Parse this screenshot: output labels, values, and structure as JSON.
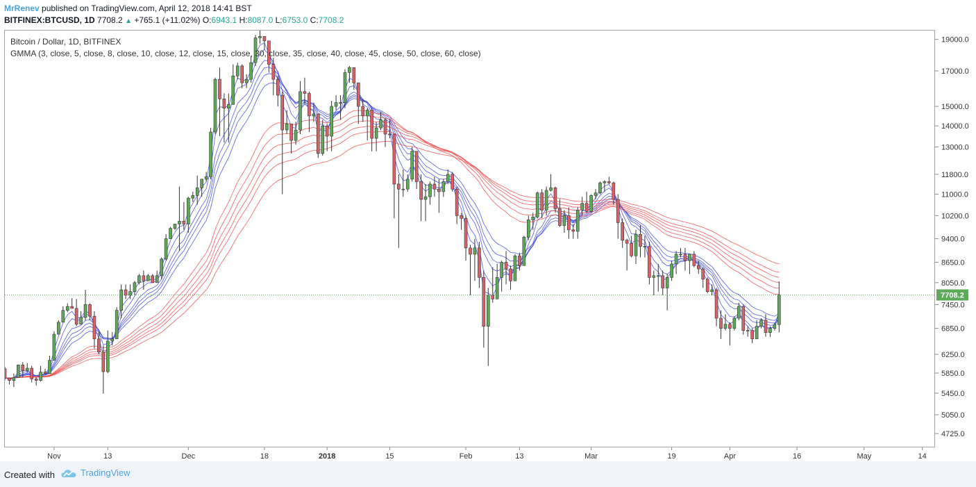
{
  "header": {
    "author": "MrRenev",
    "published": "published on TradingView.com, April 12, 2018 14:41 BST",
    "symbol": "BITFINEX:BTCUSD, 1D",
    "last": "7708.2",
    "change": "+765.1 (+11.02%)",
    "o_label": "O:",
    "o": "6943.1",
    "h_label": "H:",
    "h": "8087.0",
    "l_label": "L:",
    "l": "6753.0",
    "c_label": "C:",
    "c": "7708.2"
  },
  "legend": {
    "title": "Bitcoin / Dollar, 1D, BITFINEX",
    "indicator": "GMMA (3, close, 5, close, 8, close, 10, close, 12, close, 15, close, 30, close, 35, close, 40, close, 45, close, 50, close, 60, close)"
  },
  "footer": {
    "created": "Created with",
    "brand": "TradingView"
  },
  "colors": {
    "up": "#5ea95a",
    "down": "#d9626a",
    "wick": "#333333",
    "short_ma": "#3f49e0",
    "long_ma": "#ef4a4a",
    "last_line": "#63a95e",
    "last_badge": "#5ea95a"
  },
  "chart_data": {
    "type": "candlestick",
    "x_tick_labels": [
      "Nov",
      "13",
      "Dec",
      "18",
      "2018",
      "15",
      "Feb",
      "13",
      "Mar",
      "19",
      "Apr",
      "16",
      "May",
      "14"
    ],
    "y_tick_labels": [
      "19000.0",
      "17000.0",
      "15000.0",
      "14000.0",
      "13000.0",
      "11800.0",
      "11000.0",
      "10200.0",
      "9400.0",
      "8650.0",
      "8050.0",
      "7450.0",
      "6850.0",
      "6250.0",
      "5850.0",
      "5450.0",
      "5050.0",
      "4725.0"
    ],
    "y_ticks": [
      19000,
      17000,
      15000,
      14000,
      13000,
      11800,
      11000,
      10200,
      9400,
      8650,
      8050,
      7450,
      6850,
      6250,
      5850,
      5450,
      5050,
      4725
    ],
    "last_price_label": "7708.2",
    "last_price": 7708.2,
    "y_scale": "log",
    "ylim": [
      4500,
      19600
    ],
    "x_start": "2017-10-21",
    "x_end": "2018-05-17",
    "ohlc": [
      [
        "2017-10-21",
        5940,
        5980,
        5700,
        5750
      ],
      [
        "2017-10-22",
        5750,
        5760,
        5620,
        5700
      ],
      [
        "2017-10-23",
        5700,
        5840,
        5570,
        5760
      ],
      [
        "2017-10-24",
        5760,
        6030,
        5760,
        6020
      ],
      [
        "2017-10-25",
        6020,
        6080,
        5760,
        5900
      ],
      [
        "2017-10-26",
        5900,
        6060,
        5860,
        5950
      ],
      [
        "2017-10-27",
        5950,
        6000,
        5660,
        5730
      ],
      [
        "2017-10-28",
        5730,
        5760,
        5600,
        5700
      ],
      [
        "2017-10-29",
        5700,
        6000,
        5680,
        5870
      ],
      [
        "2017-10-30",
        5870,
        5940,
        5830,
        5840
      ],
      [
        "2017-10-31",
        5840,
        6220,
        5840,
        6120
      ],
      [
        "2017-11-01",
        6120,
        6780,
        6120,
        6710
      ],
      [
        "2017-11-02",
        6710,
        7050,
        6710,
        7000
      ],
      [
        "2017-11-03",
        7000,
        7400,
        7000,
        7300
      ],
      [
        "2017-11-04",
        7300,
        7480,
        7250,
        7400
      ],
      [
        "2017-11-05",
        7400,
        7620,
        7350,
        7350
      ],
      [
        "2017-11-06",
        7350,
        7600,
        6900,
        6950
      ],
      [
        "2017-11-07",
        6950,
        7280,
        6950,
        7120
      ],
      [
        "2017-11-08",
        7120,
        7850,
        7050,
        7450
      ],
      [
        "2017-11-09",
        7450,
        7480,
        7050,
        7150
      ],
      [
        "2017-11-10",
        7150,
        7280,
        6380,
        6600
      ],
      [
        "2017-11-11",
        6600,
        6770,
        6250,
        6300
      ],
      [
        "2017-11-12",
        6300,
        6450,
        5440,
        5880
      ],
      [
        "2017-11-13",
        5880,
        6800,
        5850,
        6550
      ],
      [
        "2017-11-14",
        6550,
        6760,
        6450,
        6600
      ],
      [
        "2017-11-15",
        6600,
        7380,
        6600,
        7300
      ],
      [
        "2017-11-16",
        7300,
        8000,
        7100,
        7850
      ],
      [
        "2017-11-17",
        7850,
        8000,
        7600,
        7700
      ],
      [
        "2017-11-18",
        7700,
        8000,
        7600,
        7800
      ],
      [
        "2017-11-19",
        7800,
        8100,
        7700,
        8050
      ],
      [
        "2017-11-20",
        8050,
        8300,
        8000,
        8250
      ],
      [
        "2017-11-21",
        8250,
        8400,
        7850,
        8100
      ],
      [
        "2017-11-22",
        8100,
        8300,
        8100,
        8250
      ],
      [
        "2017-11-23",
        8250,
        8300,
        8050,
        8050
      ],
      [
        "2017-11-24",
        8050,
        8400,
        8050,
        8250
      ],
      [
        "2017-11-25",
        8250,
        8800,
        8150,
        8750
      ],
      [
        "2017-11-26",
        8750,
        9550,
        8700,
        9400
      ],
      [
        "2017-11-27",
        9400,
        9800,
        9400,
        9750
      ],
      [
        "2017-11-28",
        9750,
        9900,
        9700,
        9900
      ],
      [
        "2017-11-29",
        9900,
        11300,
        9000,
        10000
      ],
      [
        "2017-11-30",
        10000,
        10700,
        9700,
        9900
      ],
      [
        "2017-12-01",
        9900,
        10900,
        9600,
        10850
      ],
      [
        "2017-12-02",
        10850,
        11100,
        10700,
        10950
      ],
      [
        "2017-12-03",
        10950,
        11750,
        10600,
        11250
      ],
      [
        "2017-12-04",
        11250,
        11600,
        10900,
        11600
      ],
      [
        "2017-12-05",
        11600,
        11900,
        11500,
        11700
      ],
      [
        "2017-12-06",
        11700,
        13900,
        11600,
        13700
      ],
      [
        "2017-12-07",
        13700,
        16600,
        13600,
        16500
      ],
      [
        "2017-12-08",
        16500,
        17200,
        13500,
        15400
      ],
      [
        "2017-12-09",
        15400,
        15700,
        13200,
        14900
      ],
      [
        "2017-12-10",
        14900,
        15700,
        13200,
        15100
      ],
      [
        "2017-12-11",
        15100,
        17400,
        15100,
        16700
      ],
      [
        "2017-12-12",
        16700,
        17500,
        16500,
        17300
      ],
      [
        "2017-12-13",
        17300,
        17400,
        16000,
        16300
      ],
      [
        "2017-12-14",
        16300,
        16800,
        16000,
        16500
      ],
      [
        "2017-12-15",
        16500,
        17900,
        16300,
        17500
      ],
      [
        "2017-12-16",
        17500,
        19300,
        17300,
        19100
      ],
      [
        "2017-12-17",
        19100,
        19650,
        18700,
        19200
      ],
      [
        "2017-12-18",
        19200,
        19200,
        18300,
        18900
      ],
      [
        "2017-12-19",
        18900,
        18900,
        16900,
        17400
      ],
      [
        "2017-12-20",
        17400,
        17800,
        15600,
        16500
      ],
      [
        "2017-12-21",
        16500,
        16700,
        15000,
        15600
      ],
      [
        "2017-12-22",
        15600,
        15800,
        11000,
        13800
      ],
      [
        "2017-12-23",
        13800,
        14800,
        13600,
        14100
      ],
      [
        "2017-12-24",
        14100,
        14100,
        12700,
        13300
      ],
      [
        "2017-12-25",
        13300,
        14200,
        13100,
        13800
      ],
      [
        "2017-12-26",
        13800,
        16400,
        13600,
        15800
      ],
      [
        "2017-12-27",
        15800,
        16600,
        15100,
        15700
      ],
      [
        "2017-12-28",
        15700,
        15800,
        13700,
        14500
      ],
      [
        "2017-12-29",
        14500,
        15200,
        14200,
        14600
      ],
      [
        "2017-12-30",
        14600,
        14600,
        12500,
        12700
      ],
      [
        "2017-12-31",
        12700,
        14300,
        12600,
        14000
      ],
      [
        "2018-01-01",
        14000,
        14100,
        12800,
        13500
      ],
      [
        "2018-01-02",
        13500,
        15300,
        12800,
        15000
      ],
      [
        "2018-01-03",
        15000,
        15600,
        14800,
        15200
      ],
      [
        "2018-01-04",
        15200,
        15600,
        14300,
        15200
      ],
      [
        "2018-01-05",
        15200,
        17100,
        14900,
        16900
      ],
      [
        "2018-01-06",
        16900,
        17300,
        16300,
        17200
      ],
      [
        "2018-01-07",
        17200,
        17200,
        15900,
        16300
      ],
      [
        "2018-01-08",
        16300,
        16300,
        14100,
        15000
      ],
      [
        "2018-01-09",
        15000,
        15400,
        14200,
        14500
      ],
      [
        "2018-01-10",
        14500,
        14900,
        13300,
        14800
      ],
      [
        "2018-01-11",
        14800,
        14900,
        12800,
        13400
      ],
      [
        "2018-01-12",
        13400,
        14200,
        12800,
        13900
      ],
      [
        "2018-01-13",
        13900,
        14700,
        13800,
        14300
      ],
      [
        "2018-01-14",
        14300,
        14400,
        13000,
        13600
      ],
      [
        "2018-01-15",
        13600,
        14300,
        13400,
        13600
      ],
      [
        "2018-01-16",
        13600,
        13600,
        10100,
        11400
      ],
      [
        "2018-01-17",
        11400,
        11800,
        9100,
        11200
      ],
      [
        "2018-01-18",
        11200,
        12000,
        10900,
        11200
      ],
      [
        "2018-01-19",
        11200,
        11800,
        11100,
        11600
      ],
      [
        "2018-01-20",
        11600,
        13000,
        11500,
        12800
      ],
      [
        "2018-01-21",
        12800,
        12800,
        11200,
        11500
      ],
      [
        "2018-01-22",
        11500,
        11800,
        10000,
        10800
      ],
      [
        "2018-01-23",
        10800,
        11400,
        10000,
        10900
      ],
      [
        "2018-01-24",
        10900,
        11500,
        10600,
        11400
      ],
      [
        "2018-01-25",
        11400,
        11700,
        10900,
        11200
      ],
      [
        "2018-01-26",
        11200,
        11600,
        10300,
        11100
      ],
      [
        "2018-01-27",
        11100,
        11600,
        10900,
        11500
      ],
      [
        "2018-01-28",
        11500,
        12000,
        11400,
        11800
      ],
      [
        "2018-01-29",
        11800,
        11900,
        11100,
        11200
      ],
      [
        "2018-01-30",
        11200,
        11300,
        9900,
        10200
      ],
      [
        "2018-01-31",
        10200,
        10300,
        9700,
        10100
      ],
      [
        "2018-02-01",
        10100,
        10200,
        8700,
        9100
      ],
      [
        "2018-02-02",
        9100,
        9200,
        7700,
        8900
      ],
      [
        "2018-02-03",
        8900,
        9400,
        8100,
        9100
      ],
      [
        "2018-02-04",
        9100,
        9300,
        7900,
        8200
      ],
      [
        "2018-02-05",
        8200,
        8400,
        6400,
        6900
      ],
      [
        "2018-02-06",
        6900,
        7900,
        6000,
        7700
      ],
      [
        "2018-02-07",
        7700,
        8500,
        7500,
        7600
      ],
      [
        "2018-02-08",
        7600,
        8600,
        7600,
        8200
      ],
      [
        "2018-02-09",
        8200,
        8700,
        7800,
        8650
      ],
      [
        "2018-02-10",
        8650,
        9000,
        8000,
        8450
      ],
      [
        "2018-02-11",
        8450,
        8550,
        7850,
        8100
      ],
      [
        "2018-02-12",
        8100,
        8900,
        8100,
        8850
      ],
      [
        "2018-02-13",
        8850,
        8950,
        8400,
        8550
      ],
      [
        "2018-02-14",
        8550,
        9500,
        8550,
        9450
      ],
      [
        "2018-02-15",
        9450,
        10200,
        9350,
        10050
      ],
      [
        "2018-02-16",
        10050,
        10300,
        9700,
        10150
      ],
      [
        "2018-02-17",
        10150,
        11100,
        10100,
        11050
      ],
      [
        "2018-02-18",
        11050,
        11200,
        10100,
        10400
      ],
      [
        "2018-02-19",
        10400,
        11300,
        10200,
        11150
      ],
      [
        "2018-02-20",
        11150,
        11800,
        11100,
        11250
      ],
      [
        "2018-02-21",
        11250,
        11300,
        10300,
        10450
      ],
      [
        "2018-02-22",
        10450,
        10800,
        9800,
        9850
      ],
      [
        "2018-02-23",
        9850,
        10400,
        9600,
        10200
      ],
      [
        "2018-02-24",
        10200,
        10500,
        9400,
        9700
      ],
      [
        "2018-02-25",
        9700,
        9900,
        9400,
        9650
      ],
      [
        "2018-02-26",
        9650,
        10500,
        9400,
        10400
      ],
      [
        "2018-02-27",
        10400,
        10900,
        10200,
        10650
      ],
      [
        "2018-02-28",
        10650,
        11100,
        10300,
        10350
      ],
      [
        "2018-03-01",
        10350,
        11000,
        10300,
        10950
      ],
      [
        "2018-03-02",
        10950,
        11200,
        10800,
        11050
      ],
      [
        "2018-03-03",
        11050,
        11500,
        11000,
        11450
      ],
      [
        "2018-03-04",
        11450,
        11550,
        11100,
        11500
      ],
      [
        "2018-03-05",
        11500,
        11700,
        11400,
        11450
      ],
      [
        "2018-03-06",
        11450,
        11500,
        10600,
        10800
      ],
      [
        "2018-03-07",
        10800,
        11000,
        9400,
        9950
      ],
      [
        "2018-03-08",
        9950,
        10100,
        9100,
        9350
      ],
      [
        "2018-03-09",
        9350,
        9400,
        8400,
        9250
      ],
      [
        "2018-03-10",
        9250,
        9500,
        8800,
        8850
      ],
      [
        "2018-03-11",
        8850,
        9700,
        8600,
        9550
      ],
      [
        "2018-03-12",
        9550,
        9850,
        8800,
        9150
      ],
      [
        "2018-03-13",
        9150,
        9500,
        8800,
        9150
      ],
      [
        "2018-03-14",
        9150,
        9300,
        8000,
        8200
      ],
      [
        "2018-03-15",
        8200,
        8400,
        7700,
        8250
      ],
      [
        "2018-03-16",
        8250,
        8600,
        7800,
        8250
      ],
      [
        "2018-03-17",
        8250,
        8400,
        7700,
        7900
      ],
      [
        "2018-03-18",
        7900,
        8300,
        7300,
        8200
      ],
      [
        "2018-03-19",
        8200,
        8700,
        8100,
        8600
      ],
      [
        "2018-03-20",
        8600,
        9000,
        8300,
        8900
      ],
      [
        "2018-03-21",
        8900,
        9100,
        8800,
        8900
      ],
      [
        "2018-03-22",
        8900,
        9100,
        8400,
        8700
      ],
      [
        "2018-03-23",
        8700,
        8900,
        8300,
        8900
      ],
      [
        "2018-03-24",
        8900,
        9000,
        8500,
        8550
      ],
      [
        "2018-03-25",
        8550,
        8700,
        8300,
        8450
      ],
      [
        "2018-03-26",
        8450,
        8500,
        7900,
        8150
      ],
      [
        "2018-03-27",
        8150,
        8200,
        7750,
        7800
      ],
      [
        "2018-03-28",
        7800,
        8000,
        7700,
        7850
      ],
      [
        "2018-03-29",
        7850,
        7900,
        6900,
        7100
      ],
      [
        "2018-03-30",
        7100,
        7300,
        6600,
        6850
      ],
      [
        "2018-03-31",
        6850,
        7200,
        6800,
        6950
      ],
      [
        "2018-04-01",
        6950,
        7000,
        6450,
        6850
      ],
      [
        "2018-04-02",
        6850,
        7150,
        6800,
        7100
      ],
      [
        "2018-04-03",
        7100,
        7500,
        7050,
        7400
      ],
      [
        "2018-04-04",
        7400,
        7450,
        6700,
        6800
      ],
      [
        "2018-04-05",
        6800,
        6900,
        6650,
        6800
      ],
      [
        "2018-04-06",
        6800,
        6850,
        6500,
        6600
      ],
      [
        "2018-04-07",
        6600,
        7050,
        6600,
        6900
      ],
      [
        "2018-04-08",
        6900,
        7100,
        6850,
        7050
      ],
      [
        "2018-04-09",
        7050,
        7200,
        6650,
        6750
      ],
      [
        "2018-04-10",
        6750,
        6900,
        6650,
        6850
      ],
      [
        "2018-04-11",
        6850,
        6990,
        6800,
        6943.1
      ],
      [
        "2018-04-12",
        6943.1,
        8087,
        6753,
        7708.2
      ]
    ],
    "gmma_periods": [
      3,
      5,
      8,
      10,
      12,
      15,
      30,
      35,
      40,
      45,
      50,
      60
    ],
    "short_periods": [
      3,
      5,
      8,
      10,
      12,
      15
    ],
    "long_periods": [
      30,
      35,
      40,
      45,
      50,
      60
    ]
  }
}
